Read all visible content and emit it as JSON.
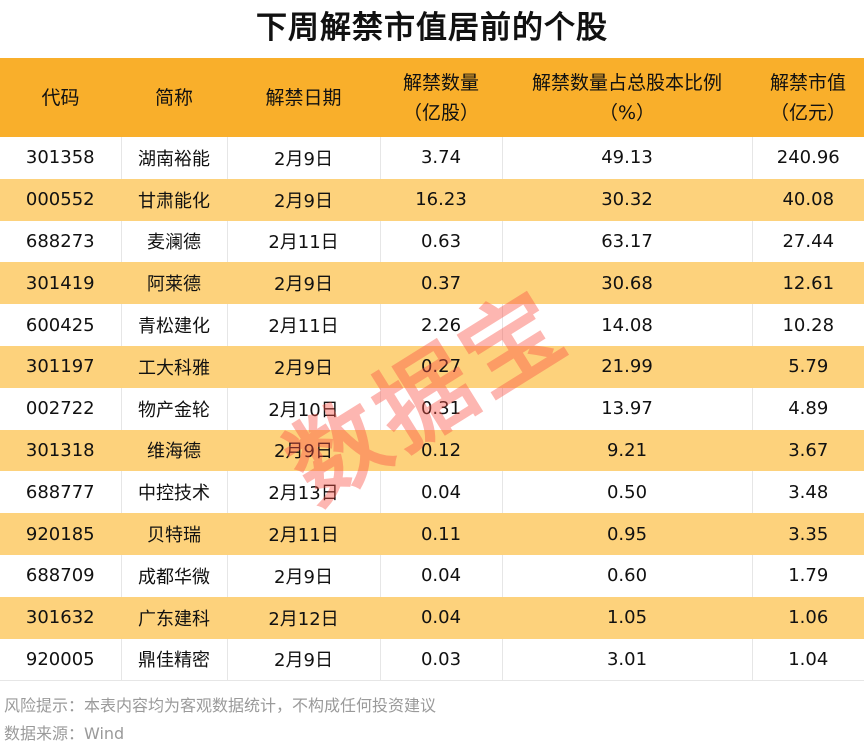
{
  "title": "下周解禁市值居前的个股",
  "watermark": "数据宝",
  "colors": {
    "header": "#F9AF2B",
    "alt_row": "#FDD27C",
    "watermark": "#FA5046"
  },
  "chart_data": {
    "type": "table",
    "title": "下周解禁市值居前的个股",
    "columns": [
      [
        "代码"
      ],
      [
        "简称"
      ],
      [
        "解禁日期"
      ],
      [
        "解禁数量",
        "（亿股）"
      ],
      [
        "解禁数量占总股本比例",
        "（%）"
      ],
      [
        "解禁市值",
        "（亿元）"
      ]
    ],
    "rows": [
      [
        "301358",
        "湖南裕能",
        "2月9日",
        "3.74",
        "49.13",
        "240.96"
      ],
      [
        "000552",
        "甘肃能化",
        "2月9日",
        "16.23",
        "30.32",
        "40.08"
      ],
      [
        "688273",
        "麦澜德",
        "2月11日",
        "0.63",
        "63.17",
        "27.44"
      ],
      [
        "301419",
        "阿莱德",
        "2月9日",
        "0.37",
        "30.68",
        "12.61"
      ],
      [
        "600425",
        "青松建化",
        "2月11日",
        "2.26",
        "14.08",
        "10.28"
      ],
      [
        "301197",
        "工大科雅",
        "2月9日",
        "0.27",
        "21.99",
        "5.79"
      ],
      [
        "002722",
        "物产金轮",
        "2月10日",
        "0.31",
        "13.97",
        "4.89"
      ],
      [
        "301318",
        "维海德",
        "2月9日",
        "0.12",
        "9.21",
        "3.67"
      ],
      [
        "688777",
        "中控技术",
        "2月13日",
        "0.04",
        "0.50",
        "3.48"
      ],
      [
        "920185",
        "贝特瑞",
        "2月11日",
        "0.11",
        "0.95",
        "3.35"
      ],
      [
        "688709",
        "成都华微",
        "2月9日",
        "0.04",
        "0.60",
        "1.79"
      ],
      [
        "301632",
        "广东建科",
        "2月12日",
        "0.04",
        "1.05",
        "1.06"
      ],
      [
        "920005",
        "鼎佳精密",
        "2月9日",
        "0.03",
        "3.01",
        "1.04"
      ]
    ]
  },
  "footer": {
    "risk": "风险提示：本表内容均为客观数据统计，不构成任何投资建议",
    "source": "数据来源：Wind"
  }
}
